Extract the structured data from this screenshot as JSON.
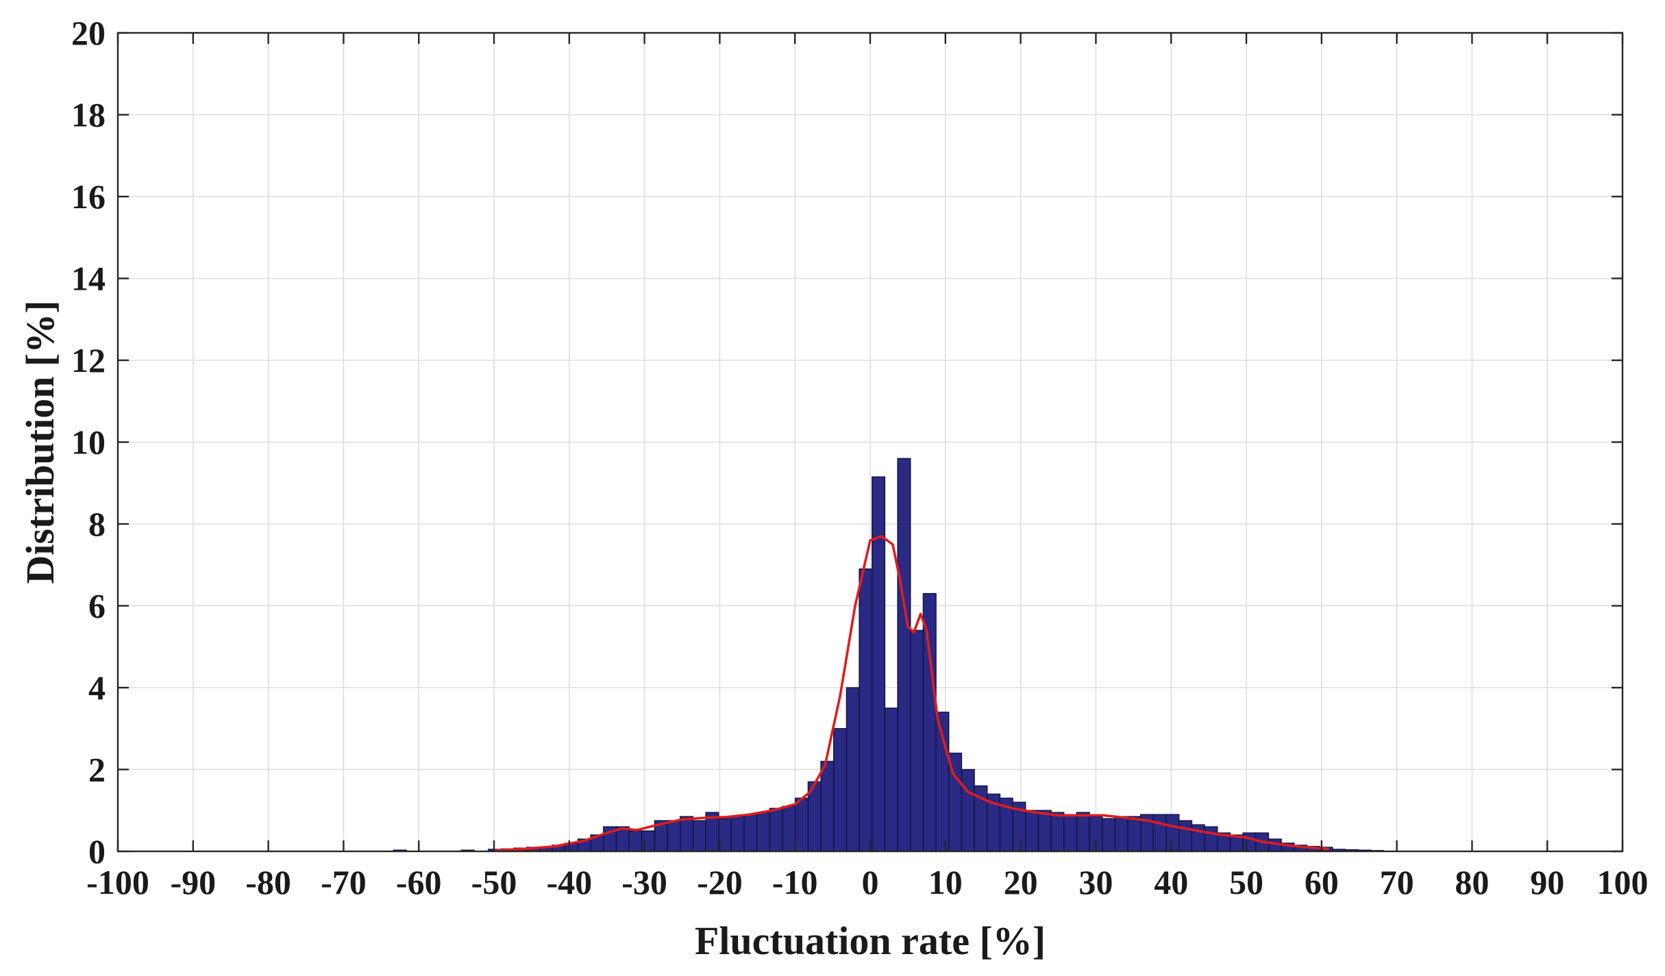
{
  "chart_data": {
    "type": "bar",
    "title": "",
    "xlabel": "Fluctuation rate [%]",
    "ylabel": "Distribution [%]",
    "xlim": [
      -100,
      100
    ],
    "ylim": [
      0,
      20
    ],
    "grid": true,
    "legend": "none",
    "xticks": [
      "-100",
      "-90",
      "-80",
      "-70",
      "-60",
      "-50",
      "-40",
      "-30",
      "-20",
      "-10",
      "0",
      "10",
      "20",
      "30",
      "40",
      "50",
      "60",
      "70",
      "80",
      "90",
      "100"
    ],
    "yticks": [
      "0",
      "2",
      "4",
      "6",
      "8",
      "10",
      "12",
      "14",
      "16",
      "18",
      "20"
    ],
    "bin_width": 1.7,
    "bins": [
      {
        "x": -62.5,
        "y": 0.03
      },
      {
        "x": -53.5,
        "y": 0.03
      },
      {
        "x": -49.9,
        "y": 0.05
      },
      {
        "x": -48.2,
        "y": 0.06
      },
      {
        "x": -46.5,
        "y": 0.08
      },
      {
        "x": -44.8,
        "y": 0.1
      },
      {
        "x": -43.1,
        "y": 0.1
      },
      {
        "x": -41.4,
        "y": 0.15
      },
      {
        "x": -39.7,
        "y": 0.2
      },
      {
        "x": -38.0,
        "y": 0.3
      },
      {
        "x": -36.3,
        "y": 0.4
      },
      {
        "x": -34.6,
        "y": 0.6
      },
      {
        "x": -32.9,
        "y": 0.6
      },
      {
        "x": -31.2,
        "y": 0.5
      },
      {
        "x": -29.5,
        "y": 0.5
      },
      {
        "x": -27.8,
        "y": 0.75
      },
      {
        "x": -26.1,
        "y": 0.75
      },
      {
        "x": -24.4,
        "y": 0.85
      },
      {
        "x": -22.7,
        "y": 0.75
      },
      {
        "x": -21.0,
        "y": 0.95
      },
      {
        "x": -19.3,
        "y": 0.8
      },
      {
        "x": -17.6,
        "y": 0.85
      },
      {
        "x": -15.9,
        "y": 0.9
      },
      {
        "x": -14.2,
        "y": 0.95
      },
      {
        "x": -12.5,
        "y": 1.05
      },
      {
        "x": -10.8,
        "y": 1.1
      },
      {
        "x": -9.1,
        "y": 1.3
      },
      {
        "x": -7.4,
        "y": 1.7
      },
      {
        "x": -5.7,
        "y": 2.2
      },
      {
        "x": -4.0,
        "y": 3.0
      },
      {
        "x": -2.3,
        "y": 4.0
      },
      {
        "x": -0.6,
        "y": 6.9
      },
      {
        "x": 1.1,
        "y": 9.15
      },
      {
        "x": 2.8,
        "y": 3.5
      },
      {
        "x": 4.5,
        "y": 9.6
      },
      {
        "x": 6.2,
        "y": 5.4
      },
      {
        "x": 7.9,
        "y": 6.3
      },
      {
        "x": 9.6,
        "y": 3.4
      },
      {
        "x": 11.3,
        "y": 2.4
      },
      {
        "x": 13.0,
        "y": 2.0
      },
      {
        "x": 14.7,
        "y": 1.6
      },
      {
        "x": 16.4,
        "y": 1.4
      },
      {
        "x": 18.1,
        "y": 1.3
      },
      {
        "x": 19.8,
        "y": 1.2
      },
      {
        "x": 21.5,
        "y": 1.0
      },
      {
        "x": 23.2,
        "y": 1.0
      },
      {
        "x": 24.9,
        "y": 0.95
      },
      {
        "x": 26.6,
        "y": 0.9
      },
      {
        "x": 28.3,
        "y": 0.95
      },
      {
        "x": 30.0,
        "y": 0.85
      },
      {
        "x": 31.7,
        "y": 0.8
      },
      {
        "x": 33.4,
        "y": 0.85
      },
      {
        "x": 35.1,
        "y": 0.85
      },
      {
        "x": 36.8,
        "y": 0.9
      },
      {
        "x": 38.5,
        "y": 0.9
      },
      {
        "x": 40.2,
        "y": 0.9
      },
      {
        "x": 41.9,
        "y": 0.75
      },
      {
        "x": 43.6,
        "y": 0.65
      },
      {
        "x": 45.3,
        "y": 0.6
      },
      {
        "x": 47.0,
        "y": 0.45
      },
      {
        "x": 48.7,
        "y": 0.4
      },
      {
        "x": 50.4,
        "y": 0.45
      },
      {
        "x": 52.1,
        "y": 0.45
      },
      {
        "x": 53.8,
        "y": 0.3
      },
      {
        "x": 55.5,
        "y": 0.2
      },
      {
        "x": 57.2,
        "y": 0.15
      },
      {
        "x": 58.9,
        "y": 0.12
      },
      {
        "x": 60.6,
        "y": 0.1
      },
      {
        "x": 62.3,
        "y": 0.05
      },
      {
        "x": 64.0,
        "y": 0.04
      },
      {
        "x": 65.7,
        "y": 0.03
      },
      {
        "x": 67.4,
        "y": 0.02
      }
    ],
    "fit_curve": [
      [
        -50,
        0.02
      ],
      [
        -46,
        0.06
      ],
      [
        -42,
        0.12
      ],
      [
        -38,
        0.26
      ],
      [
        -35,
        0.45
      ],
      [
        -33,
        0.56
      ],
      [
        -31,
        0.52
      ],
      [
        -28,
        0.66
      ],
      [
        -25,
        0.78
      ],
      [
        -22,
        0.82
      ],
      [
        -19,
        0.84
      ],
      [
        -16,
        0.9
      ],
      [
        -13,
        1.0
      ],
      [
        -10,
        1.15
      ],
      [
        -8,
        1.45
      ],
      [
        -6,
        2.1
      ],
      [
        -4,
        3.8
      ],
      [
        -2,
        6.0
      ],
      [
        0,
        7.6
      ],
      [
        1.5,
        7.7
      ],
      [
        3,
        7.5
      ],
      [
        4,
        6.6
      ],
      [
        5,
        5.5
      ],
      [
        5.8,
        5.35
      ],
      [
        6.7,
        5.8
      ],
      [
        7.5,
        5.4
      ],
      [
        9,
        3.2
      ],
      [
        11,
        1.9
      ],
      [
        13,
        1.45
      ],
      [
        16,
        1.2
      ],
      [
        19,
        1.05
      ],
      [
        22,
        0.95
      ],
      [
        25,
        0.88
      ],
      [
        28,
        0.88
      ],
      [
        31,
        0.88
      ],
      [
        34,
        0.82
      ],
      [
        37,
        0.75
      ],
      [
        40,
        0.62
      ],
      [
        43,
        0.52
      ],
      [
        46,
        0.42
      ],
      [
        48,
        0.38
      ],
      [
        50,
        0.34
      ],
      [
        52,
        0.24
      ],
      [
        55,
        0.16
      ],
      [
        58,
        0.1
      ],
      [
        61,
        0.06
      ]
    ]
  }
}
